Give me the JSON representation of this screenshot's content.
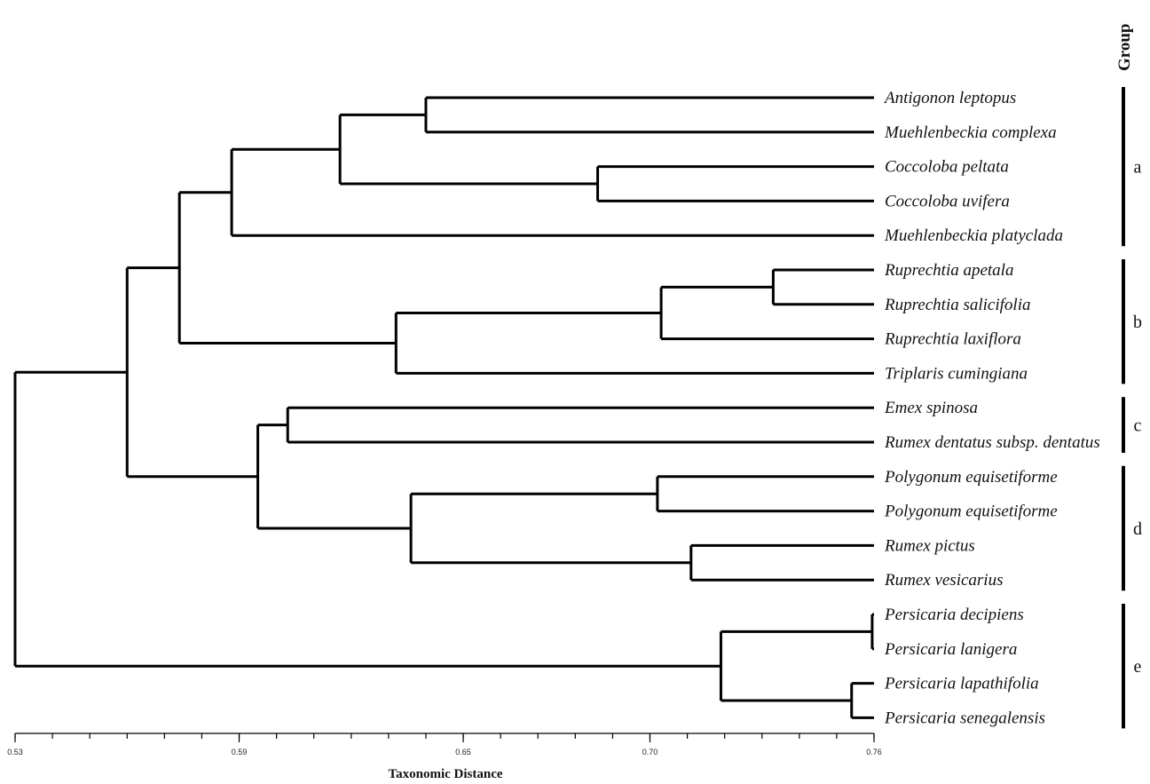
{
  "taxa": [
    "Antigonon leptopus",
    "Muehlenbeckia complexa",
    "Coccoloba peltata",
    "Coccoloba uvifera",
    "Muehlenbeckia platyclada",
    "Ruprechtia apetala",
    "Ruprechtia salicifolia",
    "Ruprechtia laxiflora",
    "Triplaris cumingiana",
    "Emex spinosa",
    "Rumex dentatus subsp. dentatus",
    "Polygonum equisetiforme",
    "Polygonum equisetiforme",
    "Rumex pictus",
    "Rumex vesicarius",
    "Persicaria decipiens",
    "Persicaria lanigera",
    "Persicaria lapathifolia",
    "Persicaria senegalensis"
  ],
  "group_title": "Group",
  "groups": [
    {
      "label": "a",
      "first": 0,
      "last": 4
    },
    {
      "label": "b",
      "first": 5,
      "last": 8
    },
    {
      "label": "c",
      "first": 9,
      "last": 10
    },
    {
      "label": "d",
      "first": 11,
      "last": 14
    },
    {
      "label": "e",
      "first": 15,
      "last": 18
    }
  ],
  "axis": {
    "label": "Taxonomic Distance",
    "min": 0.53,
    "max": 0.76,
    "tick_labels": [
      "0.53",
      "0.59",
      "0.65",
      "0.70",
      "0.76"
    ],
    "tick_values": [
      0.53,
      0.59,
      0.65,
      0.7,
      0.76
    ]
  },
  "tree": {
    "h": 0.53,
    "children": [
      {
        "h": 0.56,
        "children": [
          {
            "h": 0.574,
            "children": [
              {
                "h": 0.588,
                "children": [
                  {
                    "h": 0.617,
                    "children": [
                      {
                        "h": 0.64,
                        "children": [
                          {
                            "leaf": 0
                          },
                          {
                            "leaf": 1
                          }
                        ]
                      },
                      {
                        "h": 0.686,
                        "children": [
                          {
                            "leaf": 2
                          },
                          {
                            "leaf": 3
                          }
                        ]
                      }
                    ]
                  },
                  {
                    "leaf": 4
                  }
                ]
              },
              {
                "h": 0.632,
                "children": [
                  {
                    "h": 0.703,
                    "children": [
                      {
                        "h": 0.733,
                        "children": [
                          {
                            "leaf": 5
                          },
                          {
                            "leaf": 6
                          }
                        ]
                      },
                      {
                        "leaf": 7
                      }
                    ]
                  },
                  {
                    "leaf": 8
                  }
                ]
              }
            ]
          },
          {
            "h": 0.595,
            "children": [
              {
                "h": 0.603,
                "children": [
                  {
                    "leaf": 9
                  },
                  {
                    "leaf": 10
                  }
                ]
              },
              {
                "h": 0.636,
                "children": [
                  {
                    "h": 0.702,
                    "children": [
                      {
                        "leaf": 11
                      },
                      {
                        "leaf": 12
                      }
                    ]
                  },
                  {
                    "h": 0.711,
                    "children": [
                      {
                        "leaf": 13
                      },
                      {
                        "leaf": 14
                      }
                    ]
                  }
                ]
              }
            ]
          }
        ]
      },
      {
        "h": 0.719,
        "children": [
          {
            "h": 0.7595,
            "children": [
              {
                "leaf": 15
              },
              {
                "leaf": 16
              }
            ]
          },
          {
            "h": 0.754,
            "children": [
              {
                "leaf": 17
              },
              {
                "leaf": 18
              }
            ]
          }
        ]
      }
    ]
  }
}
